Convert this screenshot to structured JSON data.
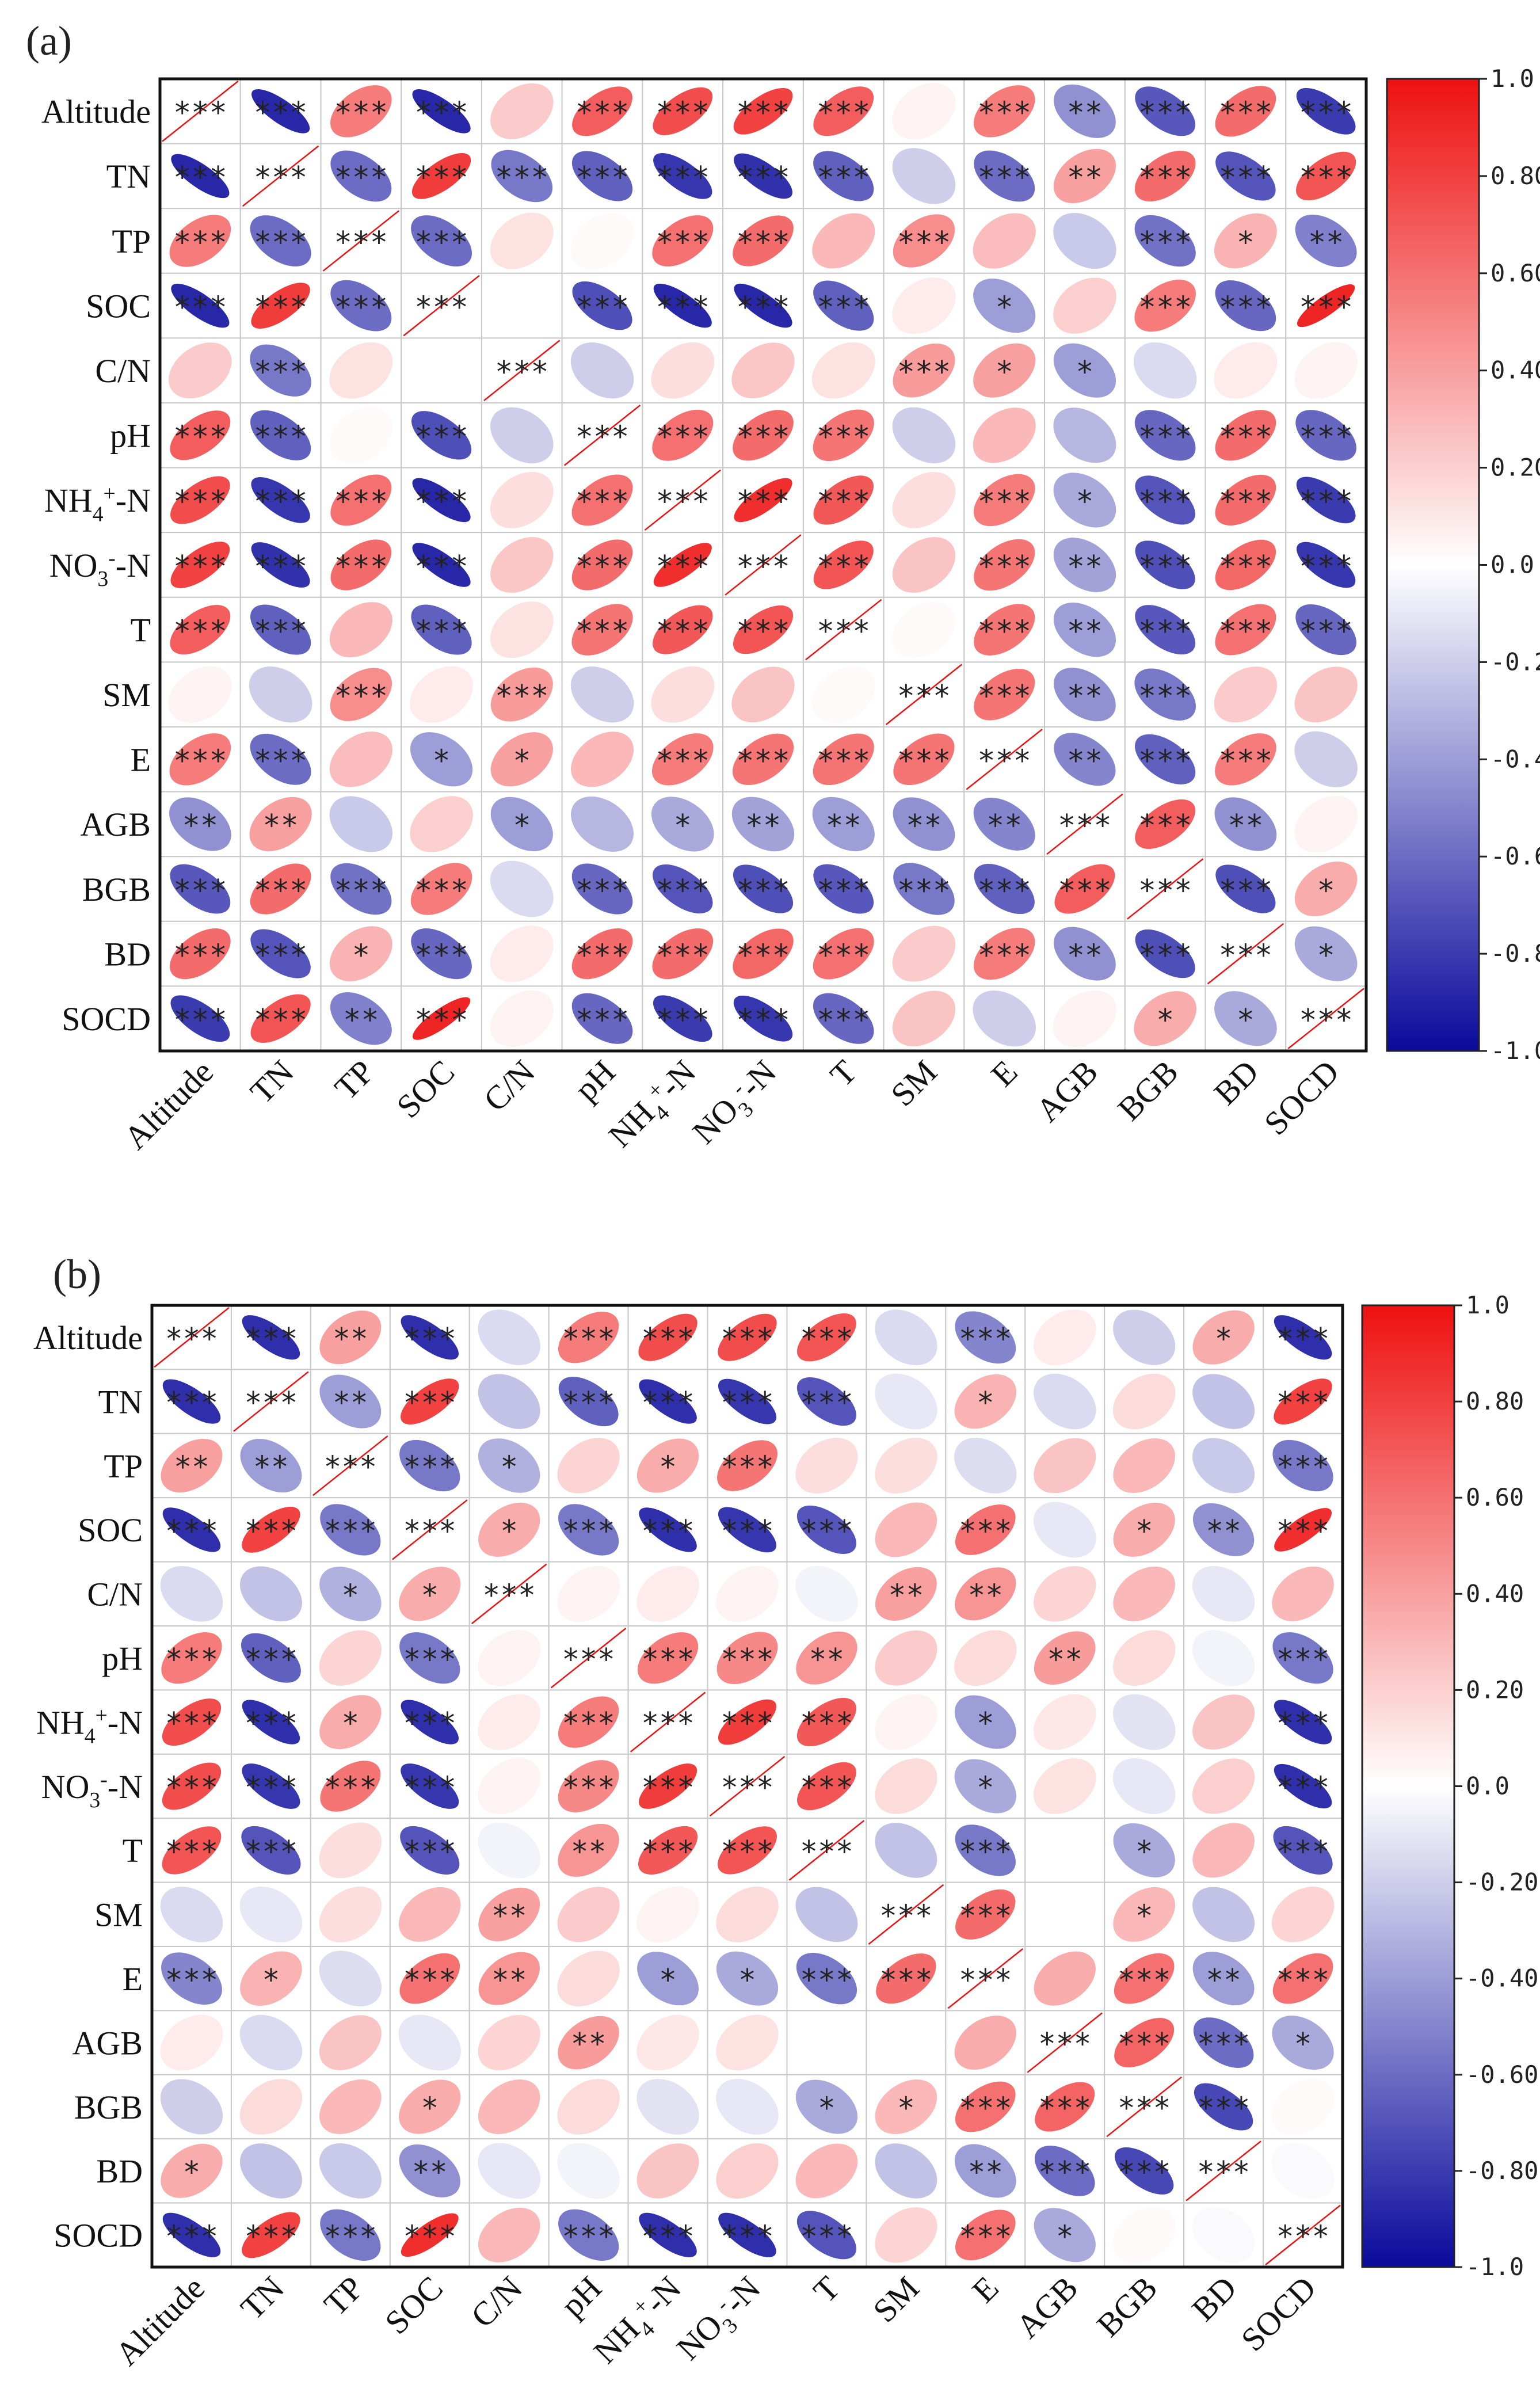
{
  "variables": [
    "Altitude",
    "TN",
    "TP",
    "SOC",
    "C/N",
    "pH",
    "NH4+-N",
    "NO3--N",
    "T",
    "SM",
    "E",
    "AGB",
    "BGB",
    "BD",
    "SOCD"
  ],
  "colorbar": {
    "ticks": [
      "1.0",
      "0.80",
      "0.60",
      "0.40",
      "0.20",
      "0.0",
      "-0.20",
      "-0.40",
      "-0.60",
      "-0.80",
      "-1.0"
    ],
    "colors": {
      "negative": "#0a0a9c",
      "neutral": "#ffffff",
      "positive": "#ee1111"
    }
  },
  "chart_data": [
    {
      "type": "heatmap",
      "subtype": "correlation-ellipse",
      "panel_label": "(a)",
      "variables": [
        "Altitude",
        "TN",
        "TP",
        "SOC",
        "C/N",
        "pH",
        "NH4+-N",
        "NO3--N",
        "T",
        "SM",
        "E",
        "AGB",
        "BGB",
        "BD",
        "SOCD"
      ],
      "vlim": [
        -1.0,
        1.0
      ],
      "values": [
        [
          1.0,
          -0.88,
          0.55,
          -0.88,
          0.22,
          0.68,
          0.75,
          0.8,
          0.68,
          0.05,
          0.55,
          -0.45,
          -0.68,
          0.62,
          -0.8
        ],
        [
          -0.88,
          1.0,
          -0.6,
          0.82,
          -0.55,
          -0.65,
          -0.82,
          -0.84,
          -0.65,
          -0.2,
          -0.6,
          0.4,
          0.62,
          -0.7,
          0.72
        ],
        [
          0.55,
          -0.6,
          1.0,
          -0.6,
          0.12,
          0.02,
          0.6,
          0.62,
          0.3,
          0.48,
          0.28,
          -0.22,
          -0.58,
          0.32,
          -0.52
        ],
        [
          -0.88,
          0.82,
          -0.6,
          1.0,
          0.0,
          -0.72,
          -0.88,
          -0.88,
          -0.65,
          0.08,
          -0.4,
          0.2,
          0.55,
          -0.62,
          0.92
        ],
        [
          0.22,
          -0.55,
          0.12,
          0.0,
          1.0,
          -0.2,
          0.14,
          0.24,
          0.12,
          0.42,
          0.4,
          -0.4,
          -0.15,
          0.08,
          0.05
        ],
        [
          0.68,
          -0.65,
          0.02,
          -0.72,
          -0.2,
          1.0,
          0.6,
          0.62,
          0.58,
          -0.2,
          0.3,
          -0.3,
          -0.62,
          0.62,
          -0.62
        ],
        [
          0.75,
          -0.82,
          0.6,
          -0.88,
          0.14,
          0.6,
          1.0,
          0.88,
          0.7,
          0.14,
          0.55,
          -0.35,
          -0.7,
          0.62,
          -0.8
        ],
        [
          0.8,
          -0.84,
          0.62,
          -0.88,
          0.24,
          0.62,
          0.88,
          1.0,
          0.72,
          0.25,
          0.58,
          -0.38,
          -0.72,
          0.64,
          -0.82
        ],
        [
          0.68,
          -0.65,
          0.3,
          -0.65,
          0.12,
          0.58,
          0.7,
          0.72,
          1.0,
          0.02,
          0.58,
          -0.4,
          -0.68,
          0.6,
          -0.62
        ],
        [
          0.05,
          -0.2,
          0.48,
          0.08,
          0.42,
          -0.2,
          0.14,
          0.25,
          0.02,
          1.0,
          0.58,
          -0.45,
          -0.55,
          0.22,
          0.25
        ],
        [
          0.55,
          -0.6,
          0.28,
          -0.4,
          0.4,
          0.3,
          0.55,
          0.58,
          0.58,
          0.58,
          1.0,
          -0.5,
          -0.65,
          0.55,
          -0.2
        ],
        [
          -0.45,
          0.4,
          -0.22,
          0.2,
          -0.4,
          -0.3,
          -0.35,
          -0.38,
          -0.4,
          -0.45,
          -0.5,
          1.0,
          0.68,
          -0.45,
          0.05
        ],
        [
          -0.68,
          0.62,
          -0.58,
          0.55,
          -0.15,
          -0.62,
          -0.7,
          -0.72,
          -0.68,
          -0.55,
          -0.65,
          0.68,
          1.0,
          -0.72,
          0.35
        ],
        [
          0.62,
          -0.7,
          0.32,
          -0.62,
          0.08,
          0.62,
          0.62,
          0.64,
          0.6,
          0.22,
          0.55,
          -0.45,
          -0.72,
          1.0,
          -0.35
        ],
        [
          -0.8,
          0.72,
          -0.52,
          0.92,
          0.05,
          -0.62,
          -0.8,
          -0.82,
          -0.62,
          0.25,
          -0.2,
          0.05,
          0.35,
          -0.35,
          1.0
        ]
      ],
      "significance": [
        [
          "***",
          "***",
          "***",
          "***",
          "",
          "***",
          "***",
          "***",
          "***",
          "",
          "***",
          "**",
          "***",
          "***",
          "***"
        ],
        [
          "***",
          "***",
          "***",
          "***",
          "***",
          "***",
          "***",
          "***",
          "***",
          "",
          "***",
          "**",
          "***",
          "***",
          "***"
        ],
        [
          "***",
          "***",
          "***",
          "***",
          "",
          "",
          "***",
          "***",
          "",
          "***",
          "",
          "",
          "***",
          "*",
          "**"
        ],
        [
          "***",
          "***",
          "***",
          "***",
          "",
          "***",
          "***",
          "***",
          "***",
          "",
          "*",
          "",
          "***",
          "***",
          "***"
        ],
        [
          "",
          "***",
          "",
          "",
          "***",
          "",
          "",
          "",
          "",
          "***",
          "*",
          "*",
          "",
          "",
          ""
        ],
        [
          "***",
          "***",
          "",
          "***",
          "",
          "***",
          "***",
          "***",
          "***",
          "",
          "",
          "",
          "***",
          "***",
          "***"
        ],
        [
          "***",
          "***",
          "***",
          "***",
          "",
          "***",
          "***",
          "***",
          "***",
          "",
          "***",
          "*",
          "***",
          "***",
          "***"
        ],
        [
          "***",
          "***",
          "***",
          "***",
          "",
          "***",
          "***",
          "***",
          "***",
          "",
          "***",
          "**",
          "***",
          "***",
          "***"
        ],
        [
          "***",
          "***",
          "",
          "***",
          "",
          "***",
          "***",
          "***",
          "***",
          "",
          "***",
          "**",
          "***",
          "***",
          "***"
        ],
        [
          "",
          "",
          "***",
          "",
          "***",
          "",
          "",
          "",
          "",
          "***",
          "***",
          "**",
          "***",
          "",
          ""
        ],
        [
          "***",
          "***",
          "",
          "*",
          "*",
          "",
          "***",
          "***",
          "***",
          "***",
          "***",
          "**",
          "***",
          "***",
          ""
        ],
        [
          "**",
          "**",
          "",
          "",
          "*",
          "",
          "*",
          "**",
          "**",
          "**",
          "**",
          "***",
          "***",
          "**",
          ""
        ],
        [
          "***",
          "***",
          "***",
          "***",
          "",
          "***",
          "***",
          "***",
          "***",
          "***",
          "***",
          "***",
          "***",
          "***",
          "*"
        ],
        [
          "***",
          "***",
          "*",
          "***",
          "",
          "***",
          "***",
          "***",
          "***",
          "",
          "***",
          "**",
          "***",
          "***",
          "*"
        ],
        [
          "***",
          "***",
          "**",
          "***",
          "",
          "***",
          "***",
          "***",
          "***",
          "",
          "",
          "",
          "*",
          "*",
          "***"
        ]
      ]
    },
    {
      "type": "heatmap",
      "subtype": "correlation-ellipse",
      "panel_label": "(b)",
      "variables": [
        "Altitude",
        "TN",
        "TP",
        "SOC",
        "C/N",
        "pH",
        "NH4+-N",
        "NO3--N",
        "T",
        "SM",
        "E",
        "AGB",
        "BGB",
        "BD",
        "SOCD"
      ],
      "vlim": [
        -1.0,
        1.0
      ],
      "values": [
        [
          1.0,
          -0.85,
          0.4,
          -0.85,
          -0.15,
          0.55,
          0.75,
          0.75,
          0.72,
          -0.15,
          -0.5,
          0.08,
          -0.2,
          0.35,
          -0.85
        ],
        [
          -0.85,
          1.0,
          -0.4,
          0.8,
          -0.25,
          -0.65,
          -0.85,
          -0.82,
          -0.7,
          -0.1,
          0.32,
          -0.15,
          0.15,
          -0.25,
          0.8
        ],
        [
          0.4,
          -0.4,
          1.0,
          -0.55,
          -0.32,
          0.18,
          0.35,
          0.58,
          0.14,
          0.14,
          -0.14,
          0.25,
          0.3,
          -0.22,
          -0.55
        ],
        [
          -0.85,
          0.8,
          -0.55,
          1.0,
          0.35,
          -0.55,
          -0.85,
          -0.82,
          -0.7,
          0.3,
          0.6,
          -0.1,
          0.35,
          -0.45,
          0.88
        ],
        [
          -0.15,
          -0.25,
          -0.32,
          0.35,
          1.0,
          0.05,
          0.08,
          0.05,
          -0.05,
          0.4,
          0.45,
          0.18,
          0.3,
          -0.1,
          0.3
        ],
        [
          0.55,
          -0.65,
          0.18,
          -0.55,
          0.05,
          1.0,
          0.55,
          0.5,
          0.45,
          0.22,
          0.15,
          0.42,
          0.15,
          -0.05,
          -0.55
        ],
        [
          0.75,
          -0.85,
          0.35,
          -0.85,
          0.08,
          0.55,
          1.0,
          0.82,
          0.7,
          0.05,
          -0.4,
          0.1,
          -0.12,
          0.25,
          -0.85
        ],
        [
          0.75,
          -0.82,
          0.58,
          -0.82,
          0.05,
          0.5,
          0.82,
          1.0,
          0.72,
          0.15,
          -0.35,
          0.12,
          -0.1,
          0.2,
          -0.85
        ],
        [
          0.72,
          -0.7,
          0.14,
          -0.7,
          -0.05,
          0.45,
          0.7,
          0.72,
          1.0,
          -0.25,
          -0.55,
          0.0,
          -0.35,
          0.3,
          -0.7
        ],
        [
          -0.15,
          -0.1,
          0.14,
          0.3,
          0.4,
          0.22,
          0.05,
          0.15,
          -0.25,
          1.0,
          0.62,
          0.0,
          0.3,
          -0.25,
          0.18
        ],
        [
          -0.5,
          0.32,
          -0.14,
          0.6,
          0.45,
          0.15,
          -0.4,
          -0.35,
          -0.55,
          0.62,
          1.0,
          0.35,
          0.6,
          -0.4,
          0.6
        ],
        [
          0.08,
          -0.15,
          0.25,
          -0.1,
          0.18,
          0.42,
          0.1,
          0.12,
          0.0,
          0.0,
          0.35,
          1.0,
          0.65,
          -0.6,
          -0.35
        ],
        [
          -0.2,
          0.15,
          0.3,
          0.35,
          0.3,
          0.15,
          -0.12,
          -0.1,
          -0.35,
          0.3,
          0.6,
          0.65,
          1.0,
          -0.75,
          0.02
        ],
        [
          0.35,
          -0.25,
          -0.22,
          -0.45,
          -0.1,
          -0.05,
          0.25,
          0.2,
          0.3,
          -0.25,
          -0.4,
          -0.6,
          -0.75,
          1.0,
          -0.02
        ],
        [
          -0.85,
          0.8,
          -0.55,
          0.88,
          0.3,
          -0.55,
          -0.85,
          -0.85,
          -0.7,
          0.18,
          0.6,
          -0.35,
          0.02,
          -0.02,
          1.0
        ]
      ],
      "significance": [
        [
          "***",
          "***",
          "**",
          "***",
          "",
          "***",
          "***",
          "***",
          "***",
          "",
          "***",
          "",
          "",
          "*",
          "***"
        ],
        [
          "***",
          "***",
          "**",
          "***",
          "",
          "***",
          "***",
          "***",
          "***",
          "",
          "*",
          "",
          "",
          "",
          "***"
        ],
        [
          "**",
          "**",
          "***",
          "***",
          "*",
          "",
          "*",
          "***",
          "",
          "",
          "",
          "",
          "",
          "",
          "***"
        ],
        [
          "***",
          "***",
          "***",
          "***",
          "*",
          "***",
          "***",
          "***",
          "***",
          "",
          "***",
          "",
          "*",
          "**",
          "***"
        ],
        [
          "",
          "",
          "*",
          "*",
          "***",
          "",
          "",
          "",
          "",
          "**",
          "**",
          "",
          "",
          "",
          ""
        ],
        [
          "***",
          "***",
          "",
          "***",
          "",
          "***",
          "***",
          "***",
          "**",
          "",
          "",
          "**",
          "",
          "",
          "***"
        ],
        [
          "***",
          "***",
          "*",
          "***",
          "",
          "***",
          "***",
          "***",
          "***",
          "",
          "*",
          "",
          "",
          "",
          "***"
        ],
        [
          "***",
          "***",
          "***",
          "***",
          "",
          "***",
          "***",
          "***",
          "***",
          "",
          "*",
          "",
          "",
          "",
          "***"
        ],
        [
          "***",
          "***",
          "",
          "***",
          "",
          "**",
          "***",
          "***",
          "***",
          "",
          "***",
          "",
          "*",
          "",
          "***"
        ],
        [
          "",
          "",
          "",
          "",
          "**",
          "",
          "",
          "",
          "",
          "***",
          "***",
          "",
          "*",
          "",
          ""
        ],
        [
          "***",
          "*",
          "",
          "***",
          "**",
          "",
          "*",
          "*",
          "***",
          "***",
          "***",
          "",
          "***",
          "**",
          "***"
        ],
        [
          "",
          "",
          "",
          "",
          "",
          "**",
          "",
          "",
          "",
          "",
          "",
          "***",
          "***",
          "***",
          "*"
        ],
        [
          "",
          "",
          "",
          "*",
          "",
          "",
          "",
          "",
          "*",
          "*",
          "***",
          "***",
          "***",
          "***",
          ""
        ],
        [
          "*",
          "",
          "",
          "**",
          "",
          "",
          "",
          "",
          "",
          "",
          "**",
          "***",
          "***",
          "***",
          ""
        ],
        [
          "***",
          "***",
          "***",
          "***",
          "",
          "***",
          "***",
          "***",
          "***",
          "",
          "***",
          "*",
          "",
          "",
          "***"
        ]
      ]
    }
  ]
}
